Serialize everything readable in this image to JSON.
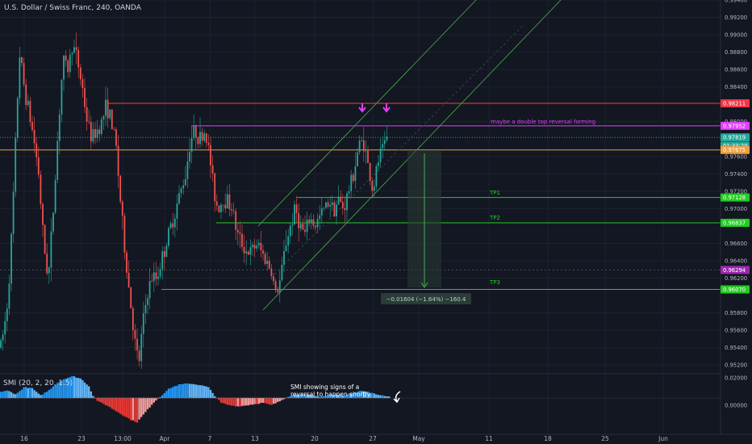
{
  "header": {
    "symbol_line": "U.S. Dollar / Swiss Franc, 240, OANDA"
  },
  "indicator": {
    "label": "SMI (20, 2, 20, 1.5)"
  },
  "annotations": {
    "double_top_note": "maybe a double top reversal forming",
    "smi_note_line1": "SMI showing signs of a",
    "smi_note_line2": "reversal to happen shortly.",
    "tp1": "TP1",
    "tp2": "TP2",
    "tp3": "TP3",
    "measure": "−0.01604 (−1.64%) −160.4"
  },
  "colors": {
    "background": "#131722",
    "bull": "#26a69a",
    "bear": "#ef5350",
    "resistance": "#ff3b3b",
    "double_top": "#e040fb",
    "entry": "#f0a040",
    "tp": "#22cc22",
    "channel": "#4caf50",
    "smi_pos": "#2196f3",
    "smi_neg": "#e53935"
  },
  "chart_data": {
    "type": "candlestick",
    "title": "U.S. Dollar / Swiss Franc, 240, OANDA",
    "ylim": [
      0.951,
      0.994
    ],
    "y_ticks": [
      0.994,
      0.992,
      0.99,
      0.988,
      0.986,
      0.984,
      0.98,
      0.976,
      0.974,
      0.972,
      0.97,
      0.966,
      0.964,
      0.962,
      0.958,
      0.956,
      0.954,
      0.952
    ],
    "x_ticks": [
      "16",
      "23",
      "13:00",
      "Apr",
      "7",
      "13",
      "20",
      "27",
      "May",
      "11",
      "18",
      "25",
      "Jun"
    ],
    "price_labels": [
      {
        "text": "0.98211",
        "value": 0.98211,
        "color": "#f23645"
      },
      {
        "text": "0.97952",
        "value": 0.97952,
        "color": "#e040fb"
      },
      {
        "text": "0.97819",
        "value": 0.97819,
        "color": "#26a69a"
      },
      {
        "text": "01:33:20",
        "value": 0.97722,
        "color": "#26a69a"
      },
      {
        "text": "0.97675",
        "value": 0.97675,
        "color": "#f0a040"
      },
      {
        "text": "0.97128",
        "value": 0.97128,
        "color": "#22cc22"
      },
      {
        "text": "0.96837",
        "value": 0.96837,
        "color": "#22cc22"
      },
      {
        "text": "0.96294",
        "value": 0.96294,
        "color": "#9c27b0"
      },
      {
        "text": "0.96070",
        "value": 0.9607,
        "color": "#22cc22"
      }
    ],
    "levels": {
      "resistance": 0.98211,
      "double_top": 0.97952,
      "current": 0.97819,
      "entry": 0.97675,
      "tp1": 0.97128,
      "tp2": 0.96837,
      "tp3": 0.9607,
      "dotted": 0.96294
    },
    "price_path": [
      [
        0,
        0.954
      ],
      [
        5,
        0.956
      ],
      [
        10,
        0.96
      ],
      [
        15,
        0.968
      ],
      [
        20,
        0.979
      ],
      [
        24,
        0.988
      ],
      [
        30,
        0.984
      ],
      [
        36,
        0.981
      ],
      [
        42,
        0.978
      ],
      [
        48,
        0.974
      ],
      [
        54,
        0.966
      ],
      [
        60,
        0.962
      ],
      [
        66,
        0.97
      ],
      [
        72,
        0.979
      ],
      [
        78,
        0.987
      ],
      [
        84,
        0.986
      ],
      [
        90,
        0.989
      ],
      [
        96,
        0.987
      ],
      [
        102,
        0.984
      ],
      [
        108,
        0.98
      ],
      [
        114,
        0.978
      ],
      [
        120,
        0.979
      ],
      [
        126,
        0.98
      ],
      [
        132,
        0.982
      ],
      [
        138,
        0.98
      ],
      [
        144,
        0.977
      ],
      [
        150,
        0.97
      ],
      [
        156,
        0.964
      ],
      [
        162,
        0.959
      ],
      [
        168,
        0.954
      ],
      [
        172,
        0.952
      ],
      [
        176,
        0.956
      ],
      [
        182,
        0.96
      ],
      [
        188,
        0.962
      ],
      [
        194,
        0.962
      ],
      [
        200,
        0.964
      ],
      [
        206,
        0.966
      ],
      [
        212,
        0.968
      ],
      [
        218,
        0.97
      ],
      [
        224,
        0.972
      ],
      [
        230,
        0.974
      ],
      [
        236,
        0.978
      ],
      [
        242,
        0.979
      ],
      [
        248,
        0.978
      ],
      [
        254,
        0.979
      ],
      [
        260,
        0.976
      ],
      [
        265,
        0.972
      ],
      [
        270,
        0.97
      ],
      [
        276,
        0.971
      ],
      [
        282,
        0.971
      ],
      [
        288,
        0.97
      ],
      [
        294,
        0.967
      ],
      [
        300,
        0.966
      ],
      [
        306,
        0.965
      ],
      [
        312,
        0.965
      ],
      [
        318,
        0.966
      ],
      [
        324,
        0.965
      ],
      [
        330,
        0.964
      ],
      [
        336,
        0.963
      ],
      [
        342,
        0.96
      ],
      [
        348,
        0.962
      ],
      [
        354,
        0.966
      ],
      [
        360,
        0.968
      ],
      [
        366,
        0.97
      ],
      [
        372,
        0.968
      ],
      [
        378,
        0.967
      ],
      [
        384,
        0.969
      ],
      [
        390,
        0.968
      ],
      [
        396,
        0.969
      ],
      [
        402,
        0.97
      ],
      [
        408,
        0.971
      ],
      [
        414,
        0.97
      ],
      [
        420,
        0.971
      ],
      [
        426,
        0.97
      ],
      [
        432,
        0.972
      ],
      [
        438,
        0.974
      ],
      [
        444,
        0.977
      ],
      [
        450,
        0.978
      ],
      [
        454,
        0.976
      ],
      [
        458,
        0.974
      ],
      [
        462,
        0.972
      ],
      [
        466,
        0.974
      ],
      [
        470,
        0.976
      ],
      [
        476,
        0.977
      ],
      [
        480,
        0.9782
      ]
    ],
    "smi_ylim": [
      -0.003,
      0.002
    ],
    "smi_ticks": [
      0.02,
      0.0
    ],
    "smi_path": [
      [
        0,
        0.0005
      ],
      [
        10,
        0.0006
      ],
      [
        20,
        0.0003
      ],
      [
        30,
        0.0009
      ],
      [
        40,
        0.0008
      ],
      [
        50,
        0.0002
      ],
      [
        60,
        0.0006
      ],
      [
        70,
        0.0012
      ],
      [
        80,
        0.0016
      ],
      [
        90,
        0.0018
      ],
      [
        100,
        0.0016
      ],
      [
        110,
        0.001
      ],
      [
        116,
        0.0001
      ],
      [
        122,
        -0.0003
      ],
      [
        132,
        -0.0006
      ],
      [
        142,
        -0.001
      ],
      [
        152,
        -0.0014
      ],
      [
        162,
        -0.0018
      ],
      [
        170,
        -0.002
      ],
      [
        180,
        -0.0012
      ],
      [
        190,
        -0.0004
      ],
      [
        200,
        0.0002
      ],
      [
        210,
        0.0008
      ],
      [
        222,
        0.0011
      ],
      [
        234,
        0.0012
      ],
      [
        246,
        0.0011
      ],
      [
        258,
        0.0009
      ],
      [
        266,
        0.0002
      ],
      [
        274,
        -0.0004
      ],
      [
        284,
        -0.0006
      ],
      [
        296,
        -0.0007
      ],
      [
        306,
        -0.0006
      ],
      [
        316,
        -0.0005
      ],
      [
        326,
        -0.0004
      ],
      [
        336,
        -0.0006
      ],
      [
        346,
        -0.0003
      ],
      [
        356,
        0.0001
      ],
      [
        366,
        0.0003
      ],
      [
        376,
        0.0003
      ],
      [
        386,
        0.0002
      ],
      [
        396,
        0.0001
      ],
      [
        406,
        0.0002
      ],
      [
        416,
        0.0003
      ],
      [
        426,
        0.0002
      ],
      [
        436,
        0.0004
      ],
      [
        446,
        0.0006
      ],
      [
        456,
        0.0005
      ],
      [
        466,
        0.0003
      ],
      [
        476,
        0.0002
      ],
      [
        484,
        0.0001
      ]
    ]
  }
}
